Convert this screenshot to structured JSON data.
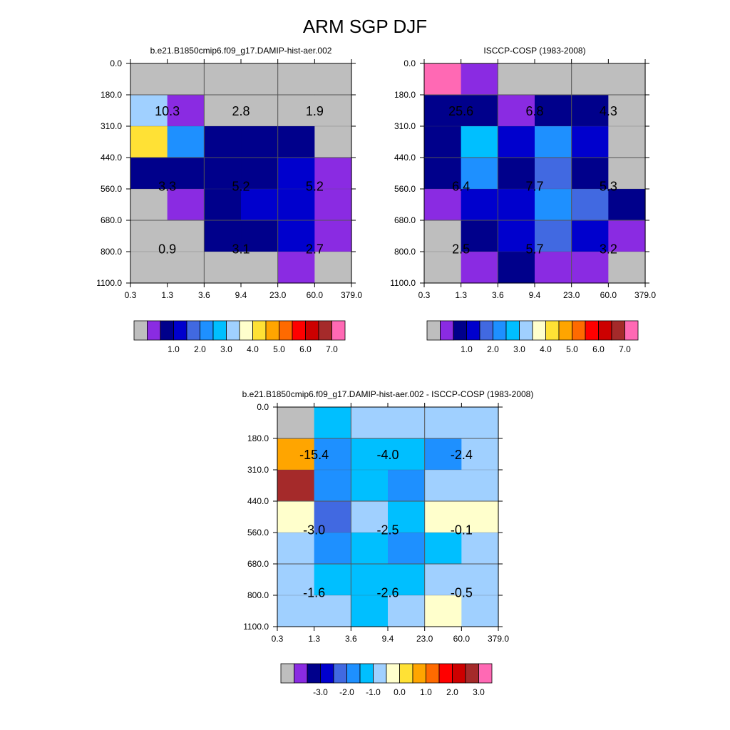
{
  "title": "ARM SGP DJF",
  "chart_data": [
    {
      "type": "heatmap",
      "title": "b.e21.B1850cmip6.f09_g17.DAMIP-hist-aer.002",
      "x_tick_labels": [
        "0.3",
        "1.3",
        "3.6",
        "9.4",
        "23.0",
        "60.0",
        "379.0"
      ],
      "y_tick_labels": [
        "0.0",
        "180.0",
        "310.0",
        "440.0",
        "560.0",
        "680.0",
        "800.0",
        "1100.0"
      ],
      "grid": true,
      "cell_color_index": [
        [
          0,
          0,
          0,
          0,
          0,
          0
        ],
        [
          7,
          1,
          0,
          0,
          0,
          0
        ],
        [
          9,
          5,
          2,
          2,
          2,
          0
        ],
        [
          2,
          2,
          2,
          2,
          3,
          1
        ],
        [
          0,
          1,
          2,
          3,
          3,
          1
        ],
        [
          0,
          0,
          2,
          2,
          3,
          1
        ],
        [
          0,
          0,
          0,
          0,
          1,
          0
        ]
      ],
      "box_values": [
        [
          "10.3",
          "2.8",
          "1.9"
        ],
        [
          "3.3",
          "5.2",
          "5.2"
        ],
        [
          "0.9",
          "3.1",
          "2.7"
        ]
      ],
      "colorbar": {
        "colors": [
          "#BEBEBE",
          "#8A2BE2",
          "#00008B",
          "#0000CD",
          "#4169E1",
          "#1E90FF",
          "#00BFFF",
          "#A0D0FF",
          "#FFFFCC",
          "#FFE135",
          "#FFA500",
          "#FF6A00",
          "#FF0000",
          "#CD0000",
          "#A52A2A",
          "#FF69B4"
        ],
        "labels": [
          "1.0",
          "2.0",
          "3.0",
          "4.0",
          "5.0",
          "6.0",
          "7.0"
        ]
      }
    },
    {
      "type": "heatmap",
      "title": "ISCCP-COSP (1983-2008)",
      "x_tick_labels": [
        "0.3",
        "1.3",
        "3.6",
        "9.4",
        "23.0",
        "60.0",
        "379.0"
      ],
      "y_tick_labels": [
        "0.0",
        "180.0",
        "310.0",
        "440.0",
        "560.0",
        "680.0",
        "800.0",
        "1100.0"
      ],
      "grid": true,
      "cell_color_index": [
        [
          15,
          1,
          0,
          0,
          0,
          0
        ],
        [
          2,
          2,
          1,
          2,
          2,
          0
        ],
        [
          2,
          6,
          3,
          5,
          3,
          0
        ],
        [
          2,
          5,
          2,
          4,
          2,
          0
        ],
        [
          1,
          3,
          3,
          5,
          4,
          2
        ],
        [
          0,
          2,
          3,
          4,
          3,
          1
        ],
        [
          0,
          1,
          2,
          1,
          1,
          0
        ]
      ],
      "box_values": [
        [
          "25.6",
          "6.8",
          "4.3"
        ],
        [
          "6.4",
          "7.7",
          "5.3"
        ],
        [
          "2.5",
          "5.7",
          "3.2"
        ]
      ],
      "colorbar": {
        "colors": [
          "#BEBEBE",
          "#8A2BE2",
          "#00008B",
          "#0000CD",
          "#4169E1",
          "#1E90FF",
          "#00BFFF",
          "#A0D0FF",
          "#FFFFCC",
          "#FFE135",
          "#FFA500",
          "#FF6A00",
          "#FF0000",
          "#CD0000",
          "#A52A2A",
          "#FF69B4"
        ],
        "labels": [
          "1.0",
          "2.0",
          "3.0",
          "4.0",
          "5.0",
          "6.0",
          "7.0"
        ]
      }
    },
    {
      "type": "heatmap",
      "title": "b.e21.B1850cmip6.f09_g17.DAMIP-hist-aer.002 - ISCCP-COSP (1983-2008)",
      "x_tick_labels": [
        "0.3",
        "1.3",
        "3.6",
        "9.4",
        "23.0",
        "60.0",
        "379.0"
      ],
      "y_tick_labels": [
        "0.0",
        "180.0",
        "310.0",
        "440.0",
        "560.0",
        "680.0",
        "800.0",
        "1100.0"
      ],
      "grid": true,
      "cell_color_index": [
        [
          0,
          6,
          7,
          7,
          7,
          7
        ],
        [
          10,
          5,
          6,
          6,
          5,
          7
        ],
        [
          14,
          5,
          6,
          5,
          7,
          7
        ],
        [
          8,
          4,
          7,
          6,
          8,
          8
        ],
        [
          7,
          5,
          6,
          5,
          6,
          7
        ],
        [
          7,
          6,
          6,
          6,
          7,
          7
        ],
        [
          7,
          7,
          6,
          7,
          8,
          7
        ]
      ],
      "box_values": [
        [
          "-15.4",
          "-4.0",
          "-2.4"
        ],
        [
          "-3.0",
          "-2.5",
          "-0.1"
        ],
        [
          "-1.6",
          "-2.6",
          "-0.5"
        ]
      ],
      "colorbar": {
        "colors": [
          "#BEBEBE",
          "#8A2BE2",
          "#00008B",
          "#0000CD",
          "#4169E1",
          "#1E90FF",
          "#00BFFF",
          "#A0D0FF",
          "#FFFFCC",
          "#FFE135",
          "#FFA500",
          "#FF6A00",
          "#FF0000",
          "#CD0000",
          "#A52A2A",
          "#FF69B4"
        ],
        "labels": [
          "-3.0",
          "-2.0",
          "-1.0",
          "0.0",
          "1.0",
          "2.0",
          "3.0"
        ]
      }
    }
  ]
}
